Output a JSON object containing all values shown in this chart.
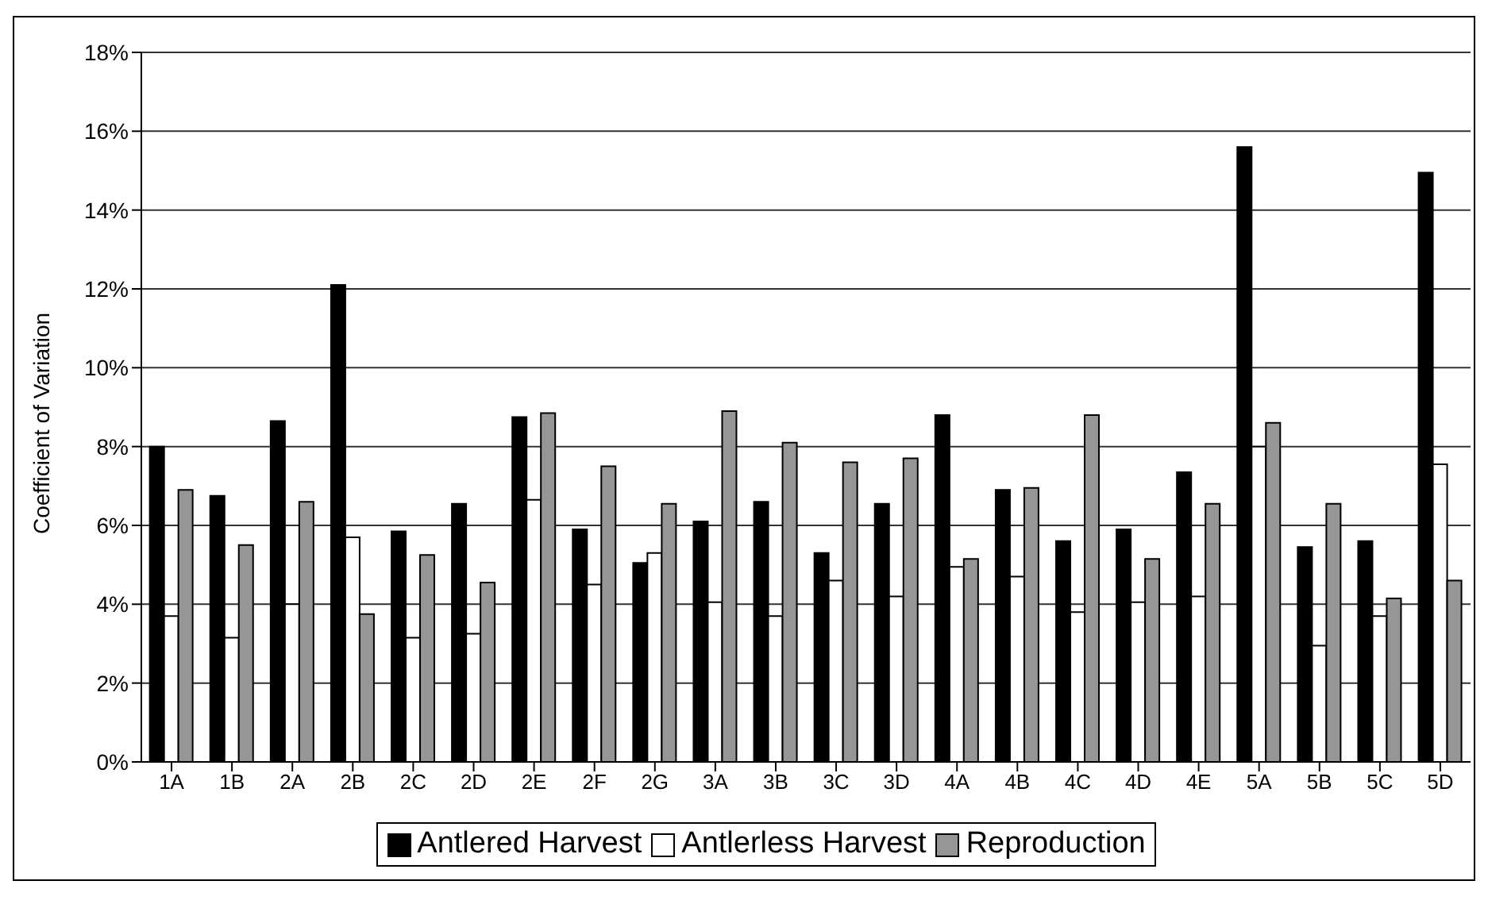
{
  "chart_data": {
    "type": "bar",
    "ylabel": "Coefficient of Variation",
    "categories": [
      "1A",
      "1B",
      "2A",
      "2B",
      "2C",
      "2D",
      "2E",
      "2F",
      "2G",
      "3A",
      "3B",
      "3C",
      "3D",
      "4A",
      "4B",
      "4C",
      "4D",
      "4E",
      "5A",
      "5B",
      "5C",
      "5D"
    ],
    "series": [
      {
        "name": "Antlered Harvest",
        "color": "#000000",
        "values": [
          8.0,
          6.75,
          8.65,
          12.1,
          5.85,
          6.55,
          8.75,
          5.9,
          5.05,
          6.1,
          6.6,
          5.3,
          6.55,
          8.8,
          6.9,
          5.6,
          5.9,
          7.35,
          15.6,
          5.45,
          5.6,
          14.95
        ]
      },
      {
        "name": "Antlerless Harvest",
        "color": "#ffffff",
        "values": [
          3.7,
          3.15,
          4.0,
          5.7,
          3.15,
          3.25,
          6.65,
          4.5,
          5.3,
          4.05,
          3.7,
          4.6,
          4.2,
          4.95,
          4.7,
          3.8,
          4.05,
          4.2,
          8.0,
          2.95,
          3.7,
          7.55
        ]
      },
      {
        "name": "Reproduction",
        "color": "#969696",
        "values": [
          6.9,
          5.5,
          6.6,
          3.75,
          5.25,
          4.55,
          8.85,
          7.5,
          6.55,
          8.9,
          8.1,
          7.6,
          7.7,
          5.15,
          6.95,
          8.8,
          5.15,
          6.55,
          8.6,
          6.55,
          4.15,
          4.6
        ]
      }
    ],
    "ylim": [
      0,
      18
    ],
    "yticks": [
      {
        "value": 0,
        "label": "0%"
      },
      {
        "value": 2,
        "label": "2%"
      },
      {
        "value": 4,
        "label": "4%"
      },
      {
        "value": 6,
        "label": "6%"
      },
      {
        "value": 8,
        "label": "8%"
      },
      {
        "value": 10,
        "label": "10%"
      },
      {
        "value": 12,
        "label": "12%"
      },
      {
        "value": 14,
        "label": "14%"
      },
      {
        "value": 16,
        "label": "16%"
      },
      {
        "value": 18,
        "label": "18%"
      }
    ],
    "grid": "y",
    "legend": "bottom"
  }
}
